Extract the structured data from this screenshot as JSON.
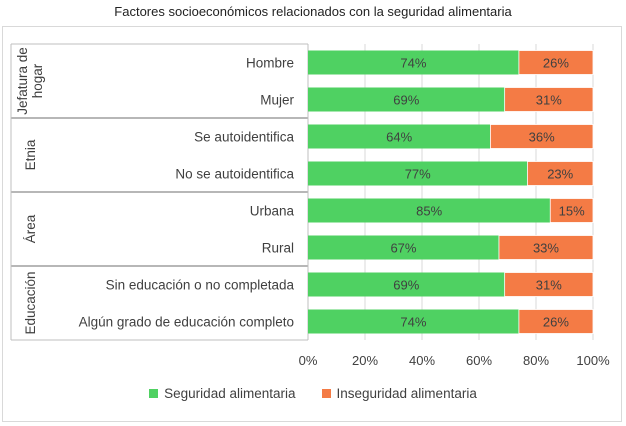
{
  "chart_data": {
    "type": "bar",
    "orientation": "horizontal",
    "stacked": true,
    "title": "Factores socioeconómicos relacionados con la seguridad alimentaria",
    "groups": [
      {
        "name": "Jefatura de hogar",
        "name_lines": [
          "Jefatura de",
          "hogar"
        ],
        "categories": [
          "Hombre",
          "Mujer"
        ]
      },
      {
        "name": "Etnia",
        "name_lines": [
          "Etnia"
        ],
        "categories": [
          "Se autoidentifica",
          "No se autoidentifica"
        ]
      },
      {
        "name": "Área",
        "name_lines": [
          "Área"
        ],
        "categories": [
          "Urbana",
          "Rural"
        ]
      },
      {
        "name": "Educación",
        "name_lines": [
          "Educación"
        ],
        "categories": [
          "Sin educación o no completada",
          "Algún grado de educación completo"
        ]
      }
    ],
    "categories": [
      "Hombre",
      "Mujer",
      "Se autoidentifica",
      "No se autoidentifica",
      "Urbana",
      "Rural",
      "Sin educación o no completada",
      "Algún grado de educación completo"
    ],
    "series": [
      {
        "name": "Seguridad alimentaria",
        "color": "#4fd162",
        "values": [
          74,
          69,
          64,
          77,
          85,
          67,
          69,
          74
        ],
        "labels": [
          "74%",
          "69%",
          "64%",
          "77%",
          "85%",
          "67%",
          "69%",
          "74%"
        ]
      },
      {
        "name": "Inseguridad alimentaria",
        "color": "#f47b45",
        "values": [
          26,
          31,
          36,
          23,
          15,
          33,
          31,
          26
        ],
        "labels": [
          "26%",
          "31%",
          "36%",
          "23%",
          "15%",
          "33%",
          "31%",
          "26%"
        ]
      }
    ],
    "xlim": [
      0,
      100
    ],
    "xticks": [
      "0%",
      "20%",
      "40%",
      "60%",
      "80%",
      "100%"
    ],
    "grid": true,
    "legend_position": "bottom"
  }
}
